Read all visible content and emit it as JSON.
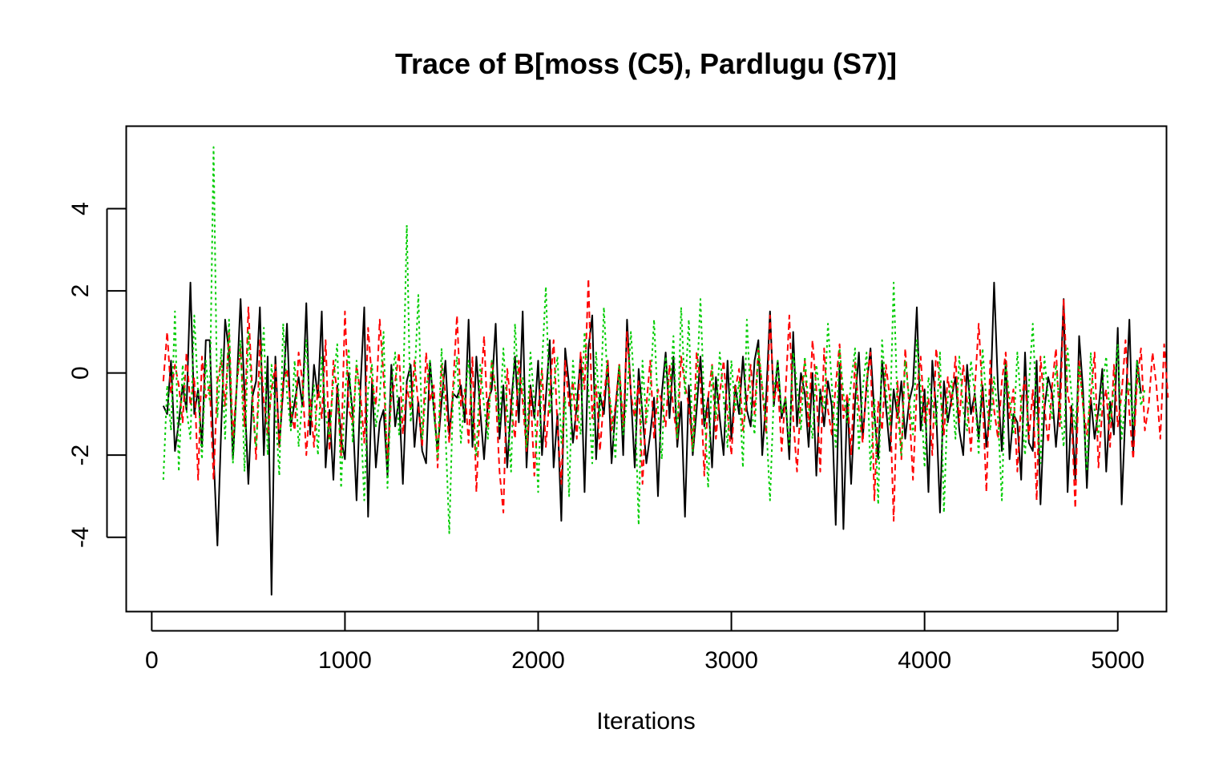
{
  "chart_data": {
    "type": "line",
    "title": "Trace of B[moss (C5), Pardlugu (S7)]",
    "xlabel": "Iterations",
    "ylabel": "",
    "xlim": [
      -130,
      5250
    ],
    "ylim": [
      -5.8,
      6.0
    ],
    "x_ticks": [
      0,
      1000,
      2000,
      3000,
      4000,
      5000
    ],
    "x_tick_labels": [
      "0",
      "1000",
      "2000",
      "3000",
      "4000",
      "5000"
    ],
    "y_ticks": [
      -4,
      -2,
      0,
      2,
      4
    ],
    "y_tick_labels": [
      "-4",
      "-2",
      "0",
      "2",
      "4"
    ],
    "grid": false,
    "legend": "none",
    "x_start": 60,
    "x_step": 20,
    "series": [
      {
        "color": "#000000",
        "dash": "",
        "values": [
          -0.8,
          -1.0,
          0.3,
          -1.9,
          -1.2,
          -0.3,
          -0.9,
          2.2,
          -1.0,
          -0.4,
          -1.8,
          0.8,
          0.8,
          -2.0,
          -4.2,
          -1.3,
          1.3,
          0.5,
          -2.1,
          -0.3,
          1.8,
          -0.5,
          -2.7,
          -0.6,
          -0.2,
          1.6,
          -2.0,
          0.4,
          -5.4,
          0.4,
          -1.8,
          -0.4,
          1.2,
          -1.3,
          -0.7,
          -0.1,
          -0.8,
          1.7,
          -1.5,
          0.2,
          -0.6,
          1.5,
          -2.3,
          -0.9,
          -2.6,
          -0.3,
          -1.6,
          -2.1,
          0.0,
          -1.0,
          -3.1,
          -0.4,
          1.6,
          -3.5,
          -0.2,
          -2.3,
          -1.2,
          -0.9,
          -2.5,
          0.2,
          -1.3,
          -0.6,
          -2.7,
          -0.2,
          0.2,
          -1.8,
          -0.7,
          -1.9,
          -2.2,
          0.3,
          -0.9,
          -1.9,
          -0.7,
          0.3,
          -1.5,
          -0.5,
          -0.6,
          -0.3,
          -1.2,
          1.3,
          -1.8,
          0.4,
          -0.9,
          -2.1,
          -0.7,
          -0.4,
          1.2,
          -1.6,
          -0.3,
          -2.3,
          -0.8,
          0.4,
          -1.2,
          1.5,
          -2.3,
          -0.3,
          -1.1,
          0.3,
          -2.0,
          -0.6,
          0.8,
          -2.3,
          -1.0,
          -3.6,
          0.6,
          -0.3,
          -1.7,
          -0.8,
          0.4,
          -2.9,
          0.6,
          1.4,
          -2.1,
          -0.5,
          -1.0,
          0.3,
          -2.2,
          -0.9,
          0.2,
          -2.0,
          1.3,
          -0.5,
          -2.3,
          0.1,
          -1.0,
          -2.2,
          -1.5,
          -0.6,
          -3.0,
          -0.5,
          0.5,
          -1.1,
          0.4,
          -1.8,
          -0.7,
          -3.5,
          -0.3,
          -2.0,
          -0.9,
          0.4,
          -1.3,
          -0.6,
          -2.3,
          -0.1,
          -1.1,
          -2.0,
          0.3,
          -1.6,
          -0.3,
          -1.0,
          0.4,
          -0.9,
          -1.3,
          0.3,
          0.8,
          -2.0,
          -0.6,
          1.5,
          -0.8,
          0.3,
          -1.1,
          -0.6,
          -2.1,
          1.0,
          -1.3,
          0.0,
          -0.5,
          -1.8,
          0.0,
          -2.5,
          -0.4,
          -1.3,
          -0.2,
          -0.8,
          -3.7,
          0.2,
          -3.8,
          -0.6,
          -2.7,
          -0.7,
          0.5,
          -1.6,
          -0.3,
          0.6,
          -1.0,
          -2.1,
          0.3,
          -0.8,
          -1.9,
          -0.4,
          -1.1,
          -0.2,
          -1.6,
          -0.7,
          -0.3,
          1.6,
          -1.4,
          -0.4,
          -2.9,
          0.3,
          -0.9,
          -3.4,
          -0.2,
          -1.2,
          -0.6,
          -0.1,
          -1.4,
          -2.0,
          0.2,
          -1.0,
          -0.5,
          -1.6,
          -0.3,
          -1.8,
          -0.8,
          2.2,
          -0.4,
          -1.9,
          0.3,
          -2.1,
          -1.0,
          -1.2,
          -2.6,
          0.5,
          -1.7,
          -1.9,
          0.3,
          -3.2,
          -0.9,
          -0.1,
          -0.5,
          -1.8,
          -0.6,
          1.8,
          -2.9,
          -0.8,
          -2.6,
          0.9,
          -0.4,
          -2.8,
          -0.6,
          -1.6,
          -0.9,
          0.1,
          -2.4,
          -0.7,
          -1.5,
          1.1,
          -3.2,
          -0.9,
          1.3,
          -1.9,
          0.3,
          -0.5
        ]
      },
      {
        "color": "#ff0000",
        "dash": "8,5",
        "values": [
          -0.2,
          1.0,
          -0.5,
          0.2,
          -0.3,
          -1.2,
          0.5,
          -0.8,
          -0.1,
          -2.6,
          0.4,
          -0.6,
          -0.3,
          -2.6,
          -0.2,
          0.3,
          -0.8,
          1.0,
          -1.6,
          -0.3,
          0.6,
          -1.3,
          1.6,
          -0.4,
          -2.1,
          0.8,
          -0.7,
          -1.5,
          -0.4,
          0.2,
          -1.8,
          -0.2,
          0.1,
          -0.9,
          -1.4,
          0.5,
          -0.2,
          -2.0,
          -0.6,
          -1.8,
          -0.3,
          -1.1,
          0.8,
          -1.9,
          0.3,
          -0.5,
          -2.0,
          1.5,
          -0.9,
          -1.2,
          0.2,
          -0.5,
          -1.7,
          1.1,
          -0.2,
          -0.8,
          1.3,
          -0.1,
          -2.1,
          -0.6,
          -0.2,
          0.5,
          -1.5,
          -0.3,
          -0.9,
          0.3,
          -0.8,
          -1.8,
          0.5,
          -0.7,
          -0.3,
          -2.3,
          0.2,
          -0.5,
          -1.7,
          -0.3,
          1.4,
          -0.8,
          -0.4,
          -1.7,
          0.4,
          -2.9,
          -0.6,
          0.9,
          -1.3,
          0.3,
          -0.5,
          -2.4,
          -3.4,
          0.1,
          -0.8,
          -1.6,
          0.3,
          -0.7,
          -1.9,
          -0.4,
          -2.5,
          -0.9,
          0.1,
          -1.8,
          -0.5,
          0.8,
          -1.3,
          -2.7,
          0.3,
          -0.8,
          -0.2,
          -1.6,
          0.5,
          -0.4,
          2.3,
          -1.1,
          -0.3,
          -1.9,
          -0.6,
          0.3,
          -1.4,
          -0.8,
          0.2,
          -1.3,
          1.0,
          -0.5,
          -1.1,
          -0.2,
          -2.7,
          -0.8,
          0.3,
          -1.6,
          -0.4,
          -0.7,
          -1.3,
          0.2,
          -0.9,
          -1.6,
          0.4,
          -0.3,
          -0.8,
          -1.9,
          0.5,
          -0.2,
          -2.5,
          -0.6,
          0.2,
          -1.6,
          -0.5,
          0.3,
          -1.0,
          -2.0,
          -0.4,
          0.1,
          -1.4,
          -0.7,
          0.2,
          -1.0,
          0.6,
          -0.4,
          -1.5,
          1.4,
          -0.7,
          -0.2,
          -1.9,
          -0.5,
          1.4,
          -1.1,
          -2.4,
          -0.6,
          0.3,
          -1.3,
          0.8,
          -0.4,
          -2.4,
          0.6,
          -0.9,
          -1.5,
          -0.3,
          0.7,
          -1.1,
          -0.5,
          -2.0,
          0.3,
          -0.9,
          -1.7,
          -0.2,
          0.5,
          -3.1,
          -0.7,
          -1.4,
          0.2,
          -0.6,
          -3.6,
          -0.2,
          -2.1,
          0.6,
          -0.8,
          -2.6,
          -0.4,
          0.4,
          -1.2,
          -0.6,
          -2.0,
          0.6,
          -0.3,
          -1.5,
          -0.1,
          -0.8,
          0.4,
          -1.2,
          0.2,
          -0.7,
          -1.9,
          -0.4,
          1.2,
          -0.6,
          -2.9,
          0.3,
          -0.9,
          -1.6,
          -0.2,
          0.5,
          -1.1,
          -0.4,
          -2.4,
          -0.7,
          -0.1,
          -1.6,
          -0.4,
          -3.1,
          0.4,
          -0.8,
          -1.7,
          -0.3,
          0.6,
          -1.3,
          1.8,
          -0.5,
          -1.0,
          -3.3,
          0.3,
          -0.8,
          -1.5,
          -0.6,
          0.5,
          -2.3,
          -0.9,
          -0.4,
          -1.8,
          0.2,
          -1.3,
          -0.5,
          0.8,
          -1.0,
          -2.1,
          -0.2,
          0.6,
          -1.4,
          -0.8,
          0.5,
          -0.3,
          -1.6,
          0.7,
          -0.6
        ]
      },
      {
        "color": "#00cd00",
        "dash": "3,4",
        "values": [
          -2.6,
          -0.3,
          -1.4,
          1.5,
          -2.4,
          0.2,
          -0.9,
          -1.6,
          1.4,
          -0.5,
          -2.1,
          0.3,
          -0.7,
          5.5,
          -1.1,
          0.6,
          -1.6,
          1.3,
          -2.2,
          -0.3,
          0.8,
          -2.4,
          1.0,
          -0.7,
          -1.8,
          -0.2,
          1.1,
          -2.0,
          0.2,
          -0.9,
          -2.5,
          1.2,
          -0.5,
          -1.4,
          0.3,
          -1.8,
          -0.6,
          0.8,
          -1.2,
          -0.3,
          -2.0,
          0.4,
          -1.0,
          -1.6,
          -0.2,
          0.7,
          -2.8,
          -0.5,
          0.6,
          -1.7,
          0.3,
          -0.9,
          -3.1,
          -0.4,
          0.2,
          -1.3,
          -0.6,
          1.0,
          -2.8,
          -0.3,
          0.5,
          -1.5,
          -0.8,
          3.6,
          -1.2,
          -0.2,
          1.9,
          -1.6,
          -0.4,
          0.3,
          -0.9,
          -2.1,
          0.6,
          -1.4,
          -3.9,
          -0.5,
          0.4,
          -1.7,
          -0.6,
          0.3,
          -1.2,
          -2.0,
          0.2,
          -0.8,
          -1.6,
          0.3,
          -0.4,
          -1.3,
          0.6,
          -0.9,
          -2.4,
          1.2,
          -0.5,
          -0.1,
          -1.8,
          0.5,
          -0.7,
          -2.9,
          0.2,
          2.1,
          -1.0,
          -0.3,
          0.4,
          -1.7,
          -0.6,
          -3.0,
          0.3,
          -0.8,
          -1.5,
          1.0,
          -0.4,
          -2.2,
          0.5,
          -1.1,
          1.6,
          -0.3,
          -0.9,
          -2.1,
          0.2,
          -1.5,
          -0.6,
          1.0,
          -0.5,
          -3.7,
          0.3,
          -1.2,
          -0.4,
          1.3,
          -0.9,
          -2.1,
          0.4,
          -0.6,
          0.9,
          -1.6,
          1.6,
          -0.5,
          1.3,
          -1.9,
          -0.4,
          1.8,
          -0.8,
          -2.8,
          0.2,
          -1.1,
          0.5,
          -0.6,
          -1.8,
          0.3,
          -0.9,
          -0.2,
          -2.3,
          1.3,
          -0.7,
          -1.5,
          0.6,
          -0.3,
          -1.2,
          -3.1,
          -0.5,
          0.3,
          -1.0,
          -0.6,
          -1.8,
          0.5,
          -0.3,
          -1.4,
          0.4,
          -0.8,
          -1.6,
          0.2,
          -0.6,
          -0.9,
          1.2,
          -0.3,
          -1.8,
          0.6,
          -0.5,
          -1.2,
          -0.2,
          0.6,
          -1.9,
          -0.4,
          0.5,
          -2.4,
          -0.6,
          -3.2,
          0.8,
          -0.4,
          -1.3,
          2.2,
          -0.9,
          -2.0,
          0.3,
          -0.6,
          -1.5,
          0.8,
          -0.4,
          -2.3,
          -0.1,
          -0.7,
          -1.3,
          0.5,
          -3.4,
          -0.6,
          -0.2,
          -1.6,
          0.4,
          -0.9,
          -1.4,
          0.3,
          -0.5,
          -2.0,
          0.6,
          -0.7,
          -1.4,
          -0.1,
          -1.1,
          -3.1,
          0.2,
          -0.6,
          -1.5,
          0.5,
          -0.8,
          -2.0,
          -0.3,
          1.2,
          -1.0,
          -2.2,
          0.4,
          -0.6,
          -1.1,
          0.2,
          -0.8,
          -1.8,
          0.6,
          -0.5,
          -1.4,
          0.2,
          -0.7,
          -2.4,
          0.5,
          -0.9,
          -1.5,
          -0.3,
          0.4,
          -1.2,
          -0.4,
          0.7,
          -1.6,
          -0.6,
          -0.2,
          -1.3,
          0.3,
          -0.8,
          -0.4
        ]
      }
    ]
  }
}
